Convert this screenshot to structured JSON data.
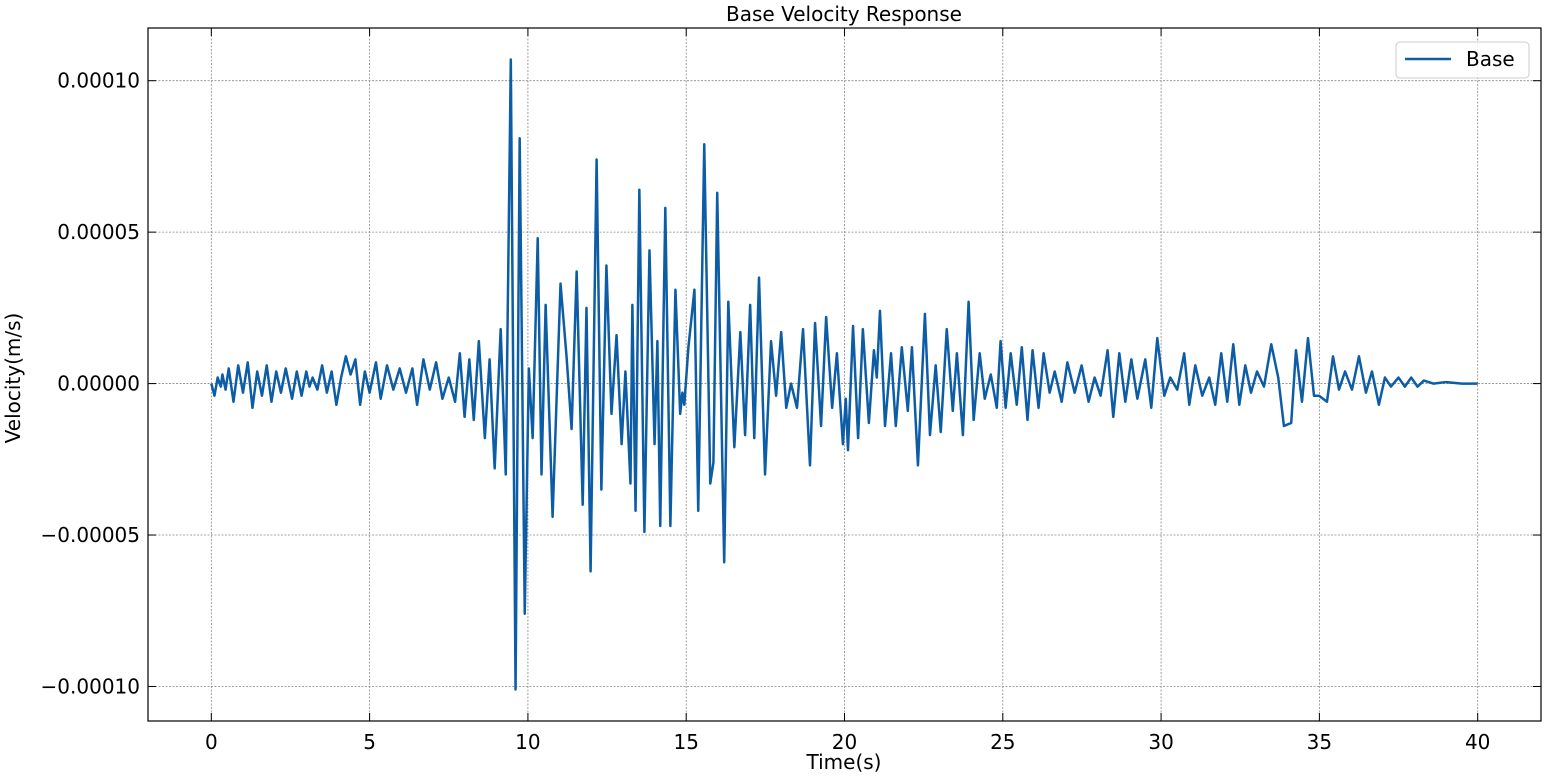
{
  "chart_data": {
    "type": "line",
    "title": "Base Velocity Response",
    "x_label": "Time(s)",
    "y_label": "Velocity(m/s)",
    "x": [
      0,
      0.1,
      0.2,
      0.3,
      0.35,
      0.45,
      0.55,
      0.7,
      0.85,
      1.0,
      1.15,
      1.3,
      1.45,
      1.6,
      1.75,
      1.9,
      2.05,
      2.2,
      2.35,
      2.55,
      2.7,
      2.85,
      3.0,
      3.1,
      3.2,
      3.35,
      3.5,
      3.65,
      3.8,
      3.95,
      4.1,
      4.25,
      4.4,
      4.55,
      4.7,
      4.85,
      5.0,
      5.2,
      5.35,
      5.55,
      5.75,
      5.95,
      6.15,
      6.35,
      6.5,
      6.7,
      6.9,
      7.1,
      7.3,
      7.5,
      7.7,
      7.85,
      8.0,
      8.15,
      8.29,
      8.45,
      8.64,
      8.79,
      8.95,
      9.14,
      9.3,
      9.46,
      9.61,
      9.74,
      9.9,
      10.03,
      10.15,
      10.31,
      10.43,
      10.56,
      10.78,
      11.03,
      11.22,
      11.38,
      11.54,
      11.73,
      11.85,
      11.98,
      12.17,
      12.32,
      12.48,
      12.64,
      12.8,
      12.96,
      13.08,
      13.24,
      13.3,
      13.4,
      13.52,
      13.68,
      13.84,
      14.0,
      14.09,
      14.18,
      14.34,
      14.5,
      14.66,
      14.81,
      14.88,
      14.94,
      15.07,
      15.26,
      15.38,
      15.57,
      15.76,
      15.86,
      15.98,
      16.2,
      16.33,
      16.52,
      16.71,
      16.86,
      17.02,
      17.15,
      17.3,
      17.49,
      17.68,
      17.84,
      18.0,
      18.16,
      18.31,
      18.5,
      18.69,
      18.91,
      19.07,
      19.26,
      19.42,
      19.61,
      19.76,
      19.95,
      20.04,
      20.11,
      20.27,
      20.43,
      20.58,
      20.77,
      20.93,
      21.02,
      21.12,
      21.28,
      21.47,
      21.62,
      21.81,
      22.0,
      22.13,
      22.32,
      22.54,
      22.7,
      22.88,
      23.04,
      23.23,
      23.42,
      23.55,
      23.74,
      23.92,
      24.08,
      24.27,
      24.43,
      24.62,
      24.81,
      24.93,
      25.09,
      25.25,
      25.44,
      25.6,
      25.78,
      25.94,
      26.13,
      26.29,
      26.48,
      26.64,
      26.86,
      27.04,
      27.27,
      27.49,
      27.71,
      27.9,
      28.09,
      28.31,
      28.49,
      28.68,
      28.87,
      29.06,
      29.25,
      29.5,
      29.69,
      29.88,
      30.1,
      30.29,
      30.51,
      30.73,
      30.89,
      31.08,
      31.3,
      31.52,
      31.71,
      31.9,
      32.09,
      32.28,
      32.47,
      32.66,
      32.84,
      33.03,
      33.25,
      33.48,
      33.7,
      33.88,
      34.11,
      34.26,
      34.45,
      34.64,
      34.83,
      34.99,
      35.24,
      35.43,
      35.62,
      35.81,
      36.03,
      36.25,
      36.47,
      36.66,
      36.88,
      37.07,
      37.26,
      37.5,
      37.7,
      37.9,
      38.1,
      38.3,
      38.6,
      39.0,
      39.5,
      40
    ],
    "series": [
      {
        "name": "Base",
        "color": "#0C5DA5",
        "values": [
          0,
          -4e-06,
          2e-06,
          -1e-06,
          3e-06,
          -2e-06,
          5e-06,
          -6e-06,
          6e-06,
          -3e-06,
          7e-06,
          -8e-06,
          4e-06,
          -4e-06,
          6e-06,
          -6e-06,
          4e-06,
          -3e-06,
          5e-06,
          -5e-06,
          4e-06,
          -4e-06,
          4e-06,
          -1e-06,
          2e-06,
          -2e-06,
          6e-06,
          -3e-06,
          4e-06,
          -7e-06,
          2e-06,
          9e-06,
          3e-06,
          8e-06,
          -7e-06,
          4e-06,
          -3e-06,
          7e-06,
          -5e-06,
          6e-06,
          -2e-06,
          5e-06,
          -3e-06,
          5e-06,
          -7e-06,
          8e-06,
          -2e-06,
          7e-06,
          -5e-06,
          2e-06,
          -6e-06,
          1e-05,
          -1.1e-05,
          8e-06,
          -1.2e-05,
          1.4e-05,
          -1.8e-05,
          8e-06,
          -2.8e-05,
          1.8e-05,
          -3e-05,
          0.000107,
          -0.000101,
          8.1e-05,
          -7.6e-05,
          5e-06,
          -1.8e-05,
          4.8e-05,
          -3e-05,
          2.6e-05,
          -4.4e-05,
          3.3e-05,
          9e-06,
          -1.5e-05,
          3.7e-05,
          -4e-05,
          2.5e-05,
          -6.2e-05,
          7.4e-05,
          -3.5e-05,
          3.9e-05,
          -1e-05,
          1.6e-05,
          -2e-05,
          4e-06,
          -3.3e-05,
          2.6e-05,
          -4.2e-05,
          6.4e-05,
          -4.9e-05,
          4.4e-05,
          -2e-05,
          1.4e-05,
          -4.7e-05,
          5.8e-05,
          -4.7e-05,
          3.1e-05,
          -1e-05,
          -3e-06,
          -7e-06,
          1.2e-05,
          3.1e-05,
          -4.2e-05,
          7.9e-05,
          -3.3e-05,
          -2.6e-05,
          6.3e-05,
          -5.9e-05,
          2.7e-05,
          -2.1e-05,
          1.7e-05,
          -1.7e-05,
          2.6e-05,
          -1.8e-05,
          3.5e-05,
          -3e-05,
          1.4e-05,
          -4e-06,
          1.7e-05,
          -8e-06,
          0,
          -8e-06,
          1.8e-05,
          -2.7e-05,
          2e-05,
          -1.4e-05,
          2.2e-05,
          -8e-06,
          1e-05,
          -2e-05,
          -5e-06,
          -2.2e-05,
          1.9e-05,
          -1.8e-05,
          1.8e-05,
          -1.3e-05,
          1.1e-05,
          2e-06,
          2.4e-05,
          -1.4e-05,
          1e-05,
          -1.4e-05,
          1.2e-05,
          -9e-06,
          1.2e-05,
          -2.7e-05,
          2.3e-05,
          -1.7e-05,
          6e-06,
          -1.6e-05,
          1.8e-05,
          -9e-06,
          1e-05,
          -1.7e-05,
          2.7e-05,
          -1.2e-05,
          1e-05,
          -5e-06,
          3e-06,
          -8e-06,
          1.4e-05,
          -8e-06,
          1e-05,
          -7e-06,
          1.2e-05,
          -1.2e-05,
          1.1e-05,
          -8e-06,
          1e-05,
          -3e-06,
          4e-06,
          -6e-06,
          7e-06,
          -3e-06,
          6e-06,
          -6e-06,
          2e-06,
          -4e-06,
          1.1e-05,
          -1.1e-05,
          1e-05,
          -6e-06,
          8e-06,
          -5e-06,
          8e-06,
          -8e-06,
          1.5e-05,
          -4e-06,
          2e-06,
          -2e-06,
          1e-05,
          -7e-06,
          6e-06,
          -4e-06,
          2e-06,
          -7e-06,
          1e-05,
          -6e-06,
          1.3e-05,
          -7e-06,
          6e-06,
          -3e-06,
          4e-06,
          -1e-06,
          1.3e-05,
          2e-06,
          -1.4e-05,
          -1.3e-05,
          1.1e-05,
          -6e-06,
          1.5e-05,
          -4e-06,
          -4e-06,
          -6e-06,
          9e-06,
          -2e-06,
          4e-06,
          -2e-06,
          9e-06,
          -3e-06,
          4e-06,
          -7e-06,
          2e-06,
          -1e-06,
          2e-06,
          -1e-06,
          2e-06,
          -1e-06,
          1e-06,
          0,
          5e-07,
          0,
          0
        ]
      }
    ],
    "xlim": [
      -2,
      42
    ],
    "ylim": [
      -0.0001114,
      0.0001174
    ],
    "xticks": [
      0,
      5,
      10,
      15,
      20,
      25,
      30,
      35,
      40
    ],
    "yticks": [
      {
        "value": -0.0001,
        "label": "−0.00010"
      },
      {
        "value": -5e-05,
        "label": "−0.00005"
      },
      {
        "value": 0,
        "label": "0.00000"
      },
      {
        "value": 5e-05,
        "label": "0.00005"
      },
      {
        "value": 0.0001,
        "label": "0.00010"
      }
    ],
    "grid": true,
    "legend": "upper right"
  }
}
